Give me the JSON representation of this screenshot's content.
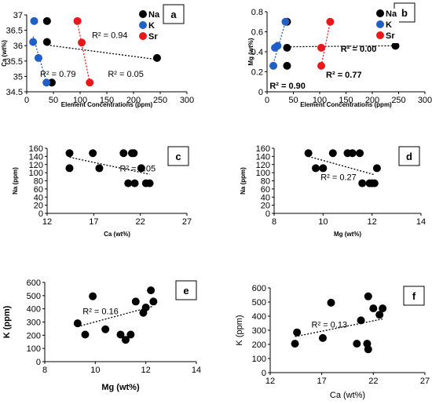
{
  "chart_data": [
    {
      "id": "a",
      "type": "scatter",
      "tag": "a",
      "xlabel": "Element Concentrations (ppm)",
      "ylabel": "Ca (wt%)",
      "xlim": [
        0,
        300
      ],
      "ylim": [
        34.5,
        37
      ],
      "xticks": [
        0,
        50,
        100,
        150,
        200,
        250,
        300
      ],
      "yticks": [
        34.5,
        35,
        35.5,
        36,
        36.5,
        37
      ],
      "xtick_labels": [
        "0",
        "50",
        "100",
        "150",
        "200",
        "250",
        "300"
      ],
      "ytick_labels": [
        "34.5",
        "35",
        "35.5",
        "36",
        "36.5",
        "37"
      ],
      "legend": [
        "Na",
        "K",
        "Sr"
      ],
      "series": [
        {
          "name": "Na",
          "color": "#000000",
          "points": [
            [
              38,
              36.8
            ],
            [
              38,
              36.12
            ],
            [
              47,
              34.8
            ],
            [
              244,
              35.6
            ]
          ],
          "trend": {
            "from": [
              38,
              36.02
            ],
            "to": [
              244,
              35.55
            ]
          }
        },
        {
          "name": "K",
          "color": "#1f5fc6",
          "points": [
            [
              14,
              36.8
            ],
            [
              12,
              36.12
            ],
            [
              22,
              35.6
            ],
            [
              37,
              34.8
            ]
          ],
          "trend": {
            "from": [
              12,
              36.3
            ],
            "to": [
              37,
              34.82
            ]
          }
        },
        {
          "name": "Sr",
          "color": "#e8191c",
          "points": [
            [
              95,
              36.8
            ],
            [
              103,
              36.1
            ],
            [
              118,
              34.8
            ]
          ],
          "trend": {
            "from": [
              95,
              36.75
            ],
            "to": [
              118,
              34.8
            ]
          }
        }
      ],
      "annotations": [
        {
          "text": "R² = 0.94",
          "x": 122,
          "y": 36.25
        },
        {
          "text": "R² = 0.79",
          "x": 25,
          "y": 34.98
        },
        {
          "text": "R² = 0.05",
          "x": 152,
          "y": 34.98
        }
      ]
    },
    {
      "id": "b",
      "type": "scatter",
      "tag": "b",
      "xlabel": "Element Concentrations (ppm)",
      "ylabel": "Mg (wt%)",
      "xlim": [
        0,
        300
      ],
      "ylim": [
        0,
        0.8
      ],
      "xticks": [
        0,
        50,
        100,
        150,
        200,
        250,
        300
      ],
      "yticks": [
        0,
        0.2,
        0.4,
        0.6,
        0.8
      ],
      "xtick_labels": [
        "0",
        "50",
        "100",
        "150",
        "200",
        "250",
        "300"
      ],
      "ytick_labels": [
        "0",
        "0.2",
        "0.4",
        "0.6",
        "0.8"
      ],
      "legend": [
        "Na",
        "K",
        "Sr"
      ],
      "series": [
        {
          "name": "Na",
          "color": "#000000",
          "points": [
            [
              38,
              0.7
            ],
            [
              38,
              0.44
            ],
            [
              38,
              0.26
            ],
            [
              244,
              0.46
            ]
          ],
          "trend": {
            "from": [
              38,
              0.45
            ],
            "to": [
              244,
              0.46
            ]
          }
        },
        {
          "name": "K",
          "color": "#1f5fc6",
          "points": [
            [
              12,
              0.26
            ],
            [
              15,
              0.44
            ],
            [
              20,
              0.46
            ],
            [
              35,
              0.7
            ]
          ],
          "trend": {
            "from": [
              12,
              0.28
            ],
            "to": [
              35,
              0.7
            ]
          }
        },
        {
          "name": "Sr",
          "color": "#e8191c",
          "points": [
            [
              103,
              0.26
            ],
            [
              103,
              0.44
            ],
            [
              120,
              0.7
            ]
          ],
          "trend": {
            "from": [
              103,
              0.26
            ],
            "to": [
              120,
              0.7
            ]
          }
        }
      ],
      "annotations": [
        {
          "text": "R² = 0.00",
          "x": 140,
          "y": 0.4,
          "bold": true
        },
        {
          "text": "R² = 0.77",
          "x": 112,
          "y": 0.14,
          "bold": true
        },
        {
          "text": "R² = 0.90",
          "x": 5,
          "y": 0.03,
          "bold": true
        }
      ]
    },
    {
      "id": "c",
      "type": "scatter",
      "tag": "c",
      "xlabel": "Ca (wt%)",
      "ylabel": "Na (ppm)",
      "xlim": [
        12,
        27
      ],
      "ylim": [
        0,
        160
      ],
      "xticks": [
        12,
        17,
        22,
        27
      ],
      "yticks": [
        0,
        20,
        40,
        60,
        80,
        100,
        120,
        140,
        160
      ],
      "xtick_labels": [
        "12",
        "17",
        "22",
        "27"
      ],
      "ytick_labels": [
        "0",
        "20",
        "40",
        "60",
        "80",
        "100",
        "120",
        "140",
        "160"
      ],
      "series": [
        {
          "name": "",
          "color": "#000000",
          "points": [
            [
              14.4,
              148
            ],
            [
              14.4,
              111
            ],
            [
              16.9,
              148
            ],
            [
              17.6,
              111
            ],
            [
              20.2,
              148
            ],
            [
              21.1,
              148
            ],
            [
              21.3,
              148
            ],
            [
              20.7,
              74
            ],
            [
              21.4,
              74
            ],
            [
              22.1,
              111
            ],
            [
              22.6,
              74
            ],
            [
              23.0,
              74
            ]
          ],
          "trend": {
            "from": [
              14.4,
              138
            ],
            "to": [
              23.0,
              96
            ]
          }
        }
      ],
      "annotations": [
        {
          "text": "R² = 0.05",
          "x": 19.8,
          "y": 103
        }
      ]
    },
    {
      "id": "d",
      "type": "scatter",
      "tag": "d",
      "xlabel": "Mg (wt%)",
      "ylabel": "Na (ppm)",
      "xlim": [
        8,
        14
      ],
      "ylim": [
        0,
        160
      ],
      "xticks": [
        8,
        10,
        12,
        14
      ],
      "yticks": [
        0,
        20,
        40,
        60,
        80,
        100,
        120,
        140,
        160
      ],
      "xtick_labels": [
        "8",
        "10",
        "12",
        "14"
      ],
      "ytick_labels": [
        "0",
        "20",
        "40",
        "60",
        "80",
        "100",
        "120",
        "140",
        "160"
      ],
      "series": [
        {
          "name": "",
          "color": "#000000",
          "points": [
            [
              9.4,
              148
            ],
            [
              9.7,
              111
            ],
            [
              10.0,
              111
            ],
            [
              10.4,
              148
            ],
            [
              11.0,
              148
            ],
            [
              11.2,
              148
            ],
            [
              11.5,
              148
            ],
            [
              11.6,
              74
            ],
            [
              11.9,
              74
            ],
            [
              12.0,
              74
            ],
            [
              12.1,
              74
            ],
            [
              12.2,
              111
            ]
          ],
          "trend": {
            "from": [
              9.4,
              140
            ],
            "to": [
              12.1,
              95
            ]
          }
        }
      ],
      "annotations": [
        {
          "text": "R² = 0.27",
          "x": 9.9,
          "y": 82
        }
      ]
    },
    {
      "id": "e",
      "type": "scatter",
      "tag": "e",
      "xlabel": "Mg (wt%)",
      "ylabel": "K (ppm)",
      "xlim": [
        8,
        14
      ],
      "ylim": [
        0,
        600
      ],
      "xticks": [
        8,
        10,
        12,
        14
      ],
      "yticks": [
        0,
        100,
        200,
        300,
        400,
        500,
        600
      ],
      "xtick_labels": [
        "8",
        "10",
        "12",
        "14"
      ],
      "ytick_labels": [
        "0",
        "100",
        "200",
        "300",
        "400",
        "500",
        "600"
      ],
      "series": [
        {
          "name": "",
          "color": "#000000",
          "points": [
            [
              9.3,
              290
            ],
            [
              9.6,
              205
            ],
            [
              9.9,
              495
            ],
            [
              10.4,
              245
            ],
            [
              11.0,
              205
            ],
            [
              11.2,
              165
            ],
            [
              11.4,
              205
            ],
            [
              11.6,
              455
            ],
            [
              11.9,
              370
            ],
            [
              12.0,
              410
            ],
            [
              12.2,
              540
            ],
            [
              12.3,
              455
            ]
          ],
          "trend": {
            "from": [
              9.3,
              265
            ],
            "to": [
              12.3,
              420
            ]
          }
        }
      ],
      "annotations": [
        {
          "text": "R² = 0.16",
          "x": 9.5,
          "y": 360
        }
      ]
    },
    {
      "id": "f",
      "type": "scatter",
      "tag": "f",
      "xlabel": "Ca (wt%)",
      "ylabel": "K (ppm)",
      "xlim": [
        12,
        27
      ],
      "ylim": [
        0,
        600
      ],
      "xticks": [
        12,
        17,
        22,
        27
      ],
      "yticks": [
        0,
        100,
        200,
        300,
        400,
        500,
        600
      ],
      "xtick_labels": [
        "12",
        "17",
        "22",
        "27"
      ],
      "ytick_labels": [
        "0",
        "100",
        "200",
        "300",
        "400",
        "500",
        "600"
      ],
      "series": [
        {
          "name": "",
          "color": "#000000",
          "points": [
            [
              14.4,
              205
            ],
            [
              14.6,
              285
            ],
            [
              17.1,
              245
            ],
            [
              17.9,
              495
            ],
            [
              20.4,
              205
            ],
            [
              20.8,
              370
            ],
            [
              21.4,
              205
            ],
            [
              21.5,
              165
            ],
            [
              21.5,
              540
            ],
            [
              22.0,
              455
            ],
            [
              22.6,
              410
            ],
            [
              22.9,
              455
            ]
          ],
          "trend": {
            "from": [
              14.4,
              255
            ],
            "to": [
              22.9,
              380
            ]
          }
        }
      ],
      "annotations": [
        {
          "text": "R² = 0.13",
          "x": 16.0,
          "y": 320
        }
      ]
    }
  ]
}
